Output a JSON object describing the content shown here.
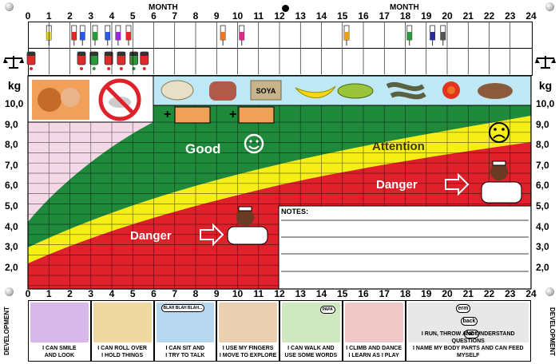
{
  "header": {
    "month_title_left": "MONTH",
    "month_title_right": "MONTH"
  },
  "months": [
    "0",
    "1",
    "2",
    "3",
    "4",
    "5",
    "6",
    "7",
    "8",
    "9",
    "10",
    "11",
    "12",
    "13",
    "14",
    "15",
    "16",
    "17",
    "18",
    "19",
    "20",
    "21",
    "22",
    "23",
    "24"
  ],
  "weight_axis": {
    "unit": "kg",
    "labels": [
      "10,0",
      "9,0",
      "8,0",
      "7,0",
      "6,0",
      "5,0",
      "4,0",
      "3,0",
      "2,0"
    ]
  },
  "zones": {
    "good": "Good",
    "attention": "Attention",
    "danger_upper": "Danger",
    "danger_lower": "Danger"
  },
  "food": {
    "soya_label": "SOYA"
  },
  "notes": {
    "label": "NOTES:"
  },
  "development": {
    "side_label_left": "DEVELOPMENT",
    "side_label_right": "DEVELOPMENT",
    "speech_blah": "BLAH BLAH BLAH...",
    "speech_papa": "PAPA",
    "word_erm": "erm",
    "word_back": "back",
    "word_foot": "foot",
    "items": [
      {
        "line1": "I CAN SMILE",
        "line2": "AND LOOK"
      },
      {
        "line1": "I CAN ROLL OVER",
        "line2": "I HOLD THINGS"
      },
      {
        "line1": "I CAN SIT AND",
        "line2": "I TRY TO TALK"
      },
      {
        "line1": "I USE MY FINGERS",
        "line2": "I MOVE TO EXPLORE"
      },
      {
        "line1": "I CAN WALK AND",
        "line2": "USE SOME WORDS"
      },
      {
        "line1": "I CLIMB AND DANCE",
        "line2": "I LEARN AS I PLAY"
      },
      {
        "line1": "I RUN, THROW AND UNDERSTAND QUESTIONS",
        "line2": "I NAME MY BODY PARTS AND CAN FEED MYSELF"
      }
    ]
  },
  "colors": {
    "good": "#1f8a3c",
    "attention": "#f5ef16",
    "danger": "#e0202a",
    "grid_pink": "#f3d9e7",
    "food_band": "#bfe8f6",
    "breastfeed_bg": "#f1a05a"
  }
}
